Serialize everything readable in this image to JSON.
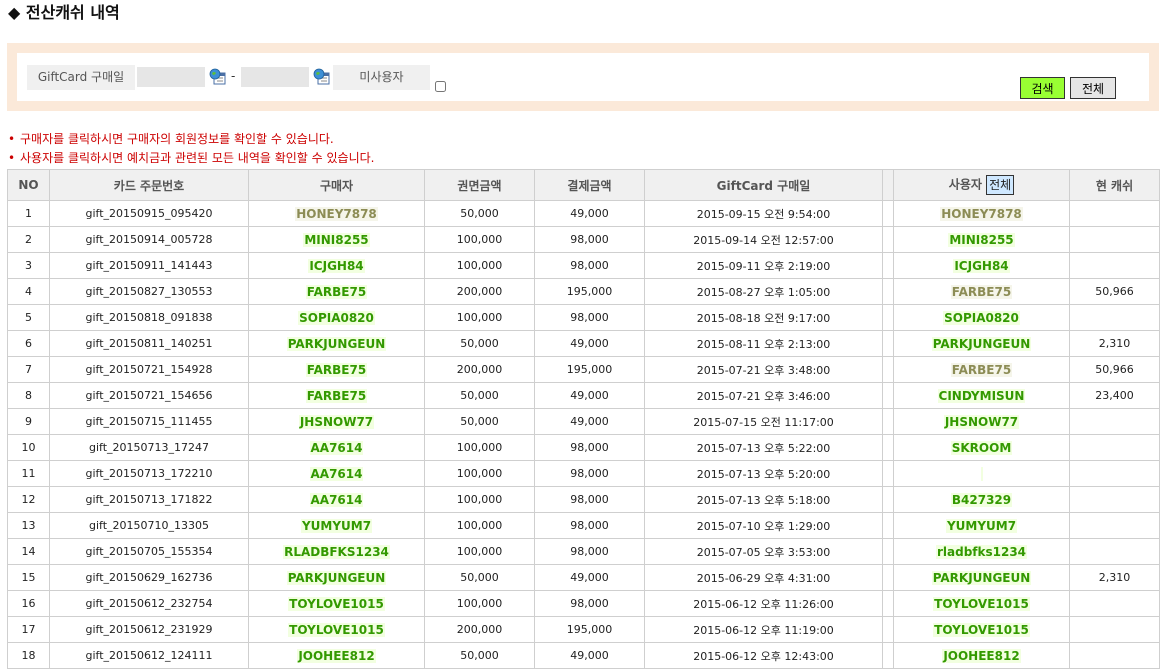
{
  "page": {
    "title": "◆ 전산캐쉬 내역"
  },
  "search": {
    "date_label": "GiftCard 구매일",
    "date_from": "",
    "date_to": "",
    "dash": "-",
    "unused_label": "미사용자",
    "search_btn": "검색",
    "all_btn": "전체"
  },
  "notices": [
    "구매자를 클릭하시면 구매자의 회원정보를 확인할 수 있습니다.",
    "사용자를 클릭하시면 예치금과 관련된 모든 내역을 확인할 수 있습니다."
  ],
  "table": {
    "headers": {
      "no": "NO",
      "order": "카드 주문번호",
      "buyer": "구매자",
      "face": "권면금액",
      "paid": "결제금액",
      "date": "GiftCard 구매일",
      "blank": "",
      "user": "사용자",
      "user_all": "전체",
      "cash": "현 캐쉬"
    },
    "rows": [
      {
        "no": "1",
        "order": "gift_20150915_095420",
        "buyer": "HONEY7878",
        "buyer_style": "olive",
        "face": "50,000",
        "paid": "49,000",
        "date": "2015-09-15 오전 9:54:00",
        "user": "HONEY7878",
        "user_style": "olive",
        "cash": ""
      },
      {
        "no": "2",
        "order": "gift_20150914_005728",
        "buyer": "MINI8255",
        "buyer_style": "green",
        "face": "100,000",
        "paid": "98,000",
        "date": "2015-09-14 오전 12:57:00",
        "user": "MINI8255",
        "user_style": "green",
        "cash": ""
      },
      {
        "no": "3",
        "order": "gift_20150911_141443",
        "buyer": "ICJGH84",
        "buyer_style": "green",
        "face": "100,000",
        "paid": "98,000",
        "date": "2015-09-11 오후 2:19:00",
        "user": "ICJGH84",
        "user_style": "green",
        "cash": ""
      },
      {
        "no": "4",
        "order": "gift_20150827_130553",
        "buyer": "FARBE75",
        "buyer_style": "green",
        "face": "200,000",
        "paid": "195,000",
        "date": "2015-08-27 오후 1:05:00",
        "user": "FARBE75",
        "user_style": "olive",
        "cash": "50,966"
      },
      {
        "no": "5",
        "order": "gift_20150818_091838",
        "buyer": "SOPIA0820",
        "buyer_style": "green",
        "face": "100,000",
        "paid": "98,000",
        "date": "2015-08-18 오전 9:17:00",
        "user": "SOPIA0820",
        "user_style": "green",
        "cash": ""
      },
      {
        "no": "6",
        "order": "gift_20150811_140251",
        "buyer": "PARKJUNGEUN",
        "buyer_style": "green",
        "face": "50,000",
        "paid": "49,000",
        "date": "2015-08-11 오후 2:13:00",
        "user": "PARKJUNGEUN",
        "user_style": "green",
        "cash": "2,310"
      },
      {
        "no": "7",
        "order": "gift_20150721_154928",
        "buyer": "FARBE75",
        "buyer_style": "green",
        "face": "200,000",
        "paid": "195,000",
        "date": "2015-07-21 오후 3:48:00",
        "user": "FARBE75",
        "user_style": "olive",
        "cash": "50,966"
      },
      {
        "no": "8",
        "order": "gift_20150721_154656",
        "buyer": "FARBE75",
        "buyer_style": "green",
        "face": "50,000",
        "paid": "49,000",
        "date": "2015-07-21 오후 3:46:00",
        "user": "CINDYMISUN",
        "user_style": "green",
        "cash": "23,400"
      },
      {
        "no": "9",
        "order": "gift_20150715_111455",
        "buyer": "JHSNOW77",
        "buyer_style": "green",
        "face": "50,000",
        "paid": "49,000",
        "date": "2015-07-15 오전 11:17:00",
        "user": "JHSNOW77",
        "user_style": "green",
        "cash": ""
      },
      {
        "no": "10",
        "order": "gift_20150713_17247",
        "buyer": "AA7614",
        "buyer_style": "green",
        "face": "100,000",
        "paid": "98,000",
        "date": "2015-07-13 오후 5:22:00",
        "user": "SKROOM",
        "user_style": "green",
        "cash": ""
      },
      {
        "no": "11",
        "order": "gift_20150713_172210",
        "buyer": "AA7614",
        "buyer_style": "green",
        "face": "100,000",
        "paid": "98,000",
        "date": "2015-07-13 오후 5:20:00",
        "user": "",
        "user_style": "green",
        "cash": ""
      },
      {
        "no": "12",
        "order": "gift_20150713_171822",
        "buyer": "AA7614",
        "buyer_style": "green",
        "face": "100,000",
        "paid": "98,000",
        "date": "2015-07-13 오후 5:18:00",
        "user": "B427329",
        "user_style": "green",
        "cash": ""
      },
      {
        "no": "13",
        "order": "gift_20150710_13305",
        "buyer": "YUMYUM7",
        "buyer_style": "green",
        "face": "100,000",
        "paid": "98,000",
        "date": "2015-07-10 오후 1:29:00",
        "user": "YUMYUM7",
        "user_style": "green",
        "cash": ""
      },
      {
        "no": "14",
        "order": "gift_20150705_155354",
        "buyer": "RLADBFKS1234",
        "buyer_style": "green",
        "face": "100,000",
        "paid": "98,000",
        "date": "2015-07-05 오후 3:53:00",
        "user": "rladbfks1234",
        "user_style": "green",
        "cash": ""
      },
      {
        "no": "15",
        "order": "gift_20150629_162736",
        "buyer": "PARKJUNGEUN",
        "buyer_style": "green",
        "face": "50,000",
        "paid": "49,000",
        "date": "2015-06-29 오후 4:31:00",
        "user": "PARKJUNGEUN",
        "user_style": "green",
        "cash": "2,310"
      },
      {
        "no": "16",
        "order": "gift_20150612_232754",
        "buyer": "TOYLOVE1015",
        "buyer_style": "green",
        "face": "100,000",
        "paid": "98,000",
        "date": "2015-06-12 오후 11:26:00",
        "user": "TOYLOVE1015",
        "user_style": "green",
        "cash": ""
      },
      {
        "no": "17",
        "order": "gift_20150612_231929",
        "buyer": "TOYLOVE1015",
        "buyer_style": "green",
        "face": "200,000",
        "paid": "195,000",
        "date": "2015-06-12 오후 11:19:00",
        "user": "TOYLOVE1015",
        "user_style": "green",
        "cash": ""
      },
      {
        "no": "18",
        "order": "gift_20150612_124111",
        "buyer": "JOOHEE812",
        "buyer_style": "green",
        "face": "50,000",
        "paid": "49,000",
        "date": "2015-06-12 오후 12:43:00",
        "user": "JOOHEE812",
        "user_style": "green",
        "cash": ""
      }
    ]
  },
  "colors": {
    "search_bg": "#fbe9d9",
    "search_btn": "#99ff33",
    "notice": "#cc0000",
    "user_green": "#339900",
    "user_olive": "#8c8c55"
  },
  "icons": {
    "calendar": "calendar-globe-icon",
    "bullet": "bullet-dot-icon"
  }
}
